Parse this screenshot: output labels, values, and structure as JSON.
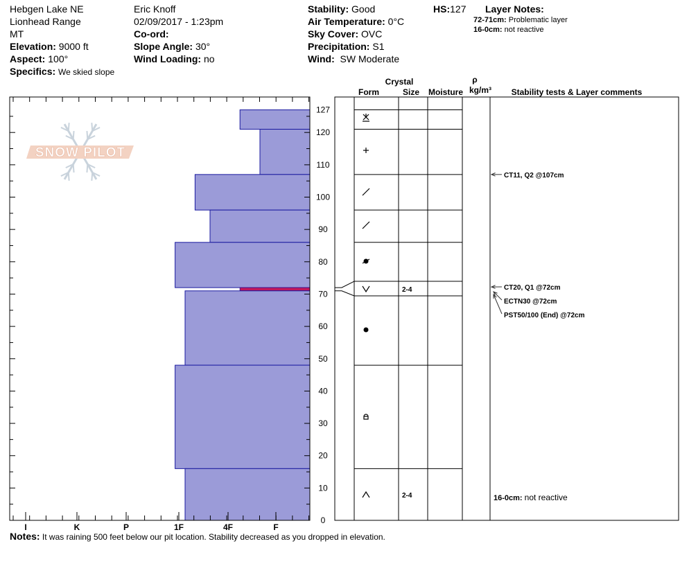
{
  "header": {
    "location": "Hebgen Lake NE",
    "range": "Lionhead Range",
    "state": "MT",
    "elevation_label": "Elevation:",
    "elevation": "9000 ft",
    "aspect_label": "Aspect:",
    "aspect": "100°",
    "specifics_label": "Specifics:",
    "specifics": "We skied slope",
    "observer": "Eric Knoff",
    "datetime": "02/09/2017 - 1:23pm",
    "coord_label": "Co-ord:",
    "coord": "",
    "slope_label": "Slope Angle:",
    "slope": "30°",
    "wind_loading_label": "Wind Loading:",
    "wind_loading": "no",
    "stability_label": "Stability:",
    "stability": "Good",
    "air_temp_label": "Air Temperature:",
    "air_temp": "0°C",
    "sky_label": "Sky Cover:",
    "sky": "OVC",
    "precip_label": "Precipitation:",
    "precip": "S1",
    "wind_label": "Wind:",
    "wind": "SW Moderate",
    "hs_label": "HS:",
    "hs": "127",
    "layer_notes_label": "Layer Notes:",
    "layer_notes": [
      {
        "range": "72-71cm:",
        "text": "Problematic layer"
      },
      {
        "range": "16-0cm:",
        "text": "not reactive"
      }
    ]
  },
  "logo_text": "SNOW PILOT",
  "columns": {
    "crystal": "Crystal",
    "form": "Form",
    "size": "Size",
    "moisture": "Moisture",
    "rho": "ρ",
    "density_unit": "kg/m³",
    "comments": "Stability tests & Layer comments"
  },
  "chart_data": {
    "type": "bar",
    "orientation": "horizontal-step-profile",
    "x_categories": [
      "I",
      "K",
      "P",
      "1F",
      "4F",
      "F"
    ],
    "y_ticks": [
      0,
      10,
      20,
      30,
      40,
      50,
      60,
      70,
      80,
      90,
      100,
      110,
      120,
      127
    ],
    "ylim": [
      0,
      127
    ],
    "hardness_scale_note": "hardness index: F=1 at right edge, I=7 at left edge",
    "colors": {
      "fill": "#9b9bd8",
      "stroke": "#1a1aa0",
      "weak_layer": "#c2185b"
    },
    "layers": [
      {
        "top": 127,
        "bottom": 121,
        "hardness": "F+",
        "hardness_value": 1.4,
        "form": "decomposing-precip",
        "size": "",
        "moisture": ""
      },
      {
        "top": 121,
        "bottom": 107,
        "hardness": "F",
        "hardness_value": 1.0,
        "form": "precip",
        "size": "",
        "moisture": ""
      },
      {
        "top": 107,
        "bottom": 96,
        "hardness": "4F+",
        "hardness_value": 2.3,
        "form": "decomposing",
        "size": "",
        "moisture": ""
      },
      {
        "top": 96,
        "bottom": 86,
        "hardness": "4F",
        "hardness_value": 2.0,
        "form": "decomposing",
        "size": "",
        "moisture": ""
      },
      {
        "top": 86,
        "bottom": 72,
        "hardness": "1F-",
        "hardness_value": 2.7,
        "form": "rounding",
        "size": "",
        "moisture": ""
      },
      {
        "top": 72,
        "bottom": 71,
        "hardness": "F+",
        "hardness_value": 1.4,
        "form": "surface-hoar",
        "size": "2-4",
        "moisture": "",
        "weak": true
      },
      {
        "top": 71,
        "bottom": 48,
        "hardness": "1F",
        "hardness_value": 2.5,
        "form": "rounded",
        "size": "",
        "moisture": ""
      },
      {
        "top": 48,
        "bottom": 16,
        "hardness": "1F-",
        "hardness_value": 2.7,
        "form": "faceted-rounding",
        "size": "",
        "moisture": ""
      },
      {
        "top": 16,
        "bottom": 0,
        "hardness": "1F",
        "hardness_value": 2.5,
        "form": "depth-hoar",
        "size": "2-4",
        "moisture": ""
      }
    ],
    "tests": [
      {
        "depth": 107,
        "label": "CT11, Q2 @107cm"
      },
      {
        "depth": 72,
        "label": "CT20, Q1 @72cm"
      },
      {
        "depth": 72,
        "label": "ECTN30 @72cm"
      },
      {
        "depth": 72,
        "label": "PST50/100 (End) @72cm"
      }
    ],
    "bottom_comment": {
      "range": "16-0cm:",
      "text": "not reactive"
    }
  },
  "notes": {
    "label": "Notes:",
    "text": "It was raining 500 feet below our pit location. Stability decreased as you dropped in elevation."
  }
}
